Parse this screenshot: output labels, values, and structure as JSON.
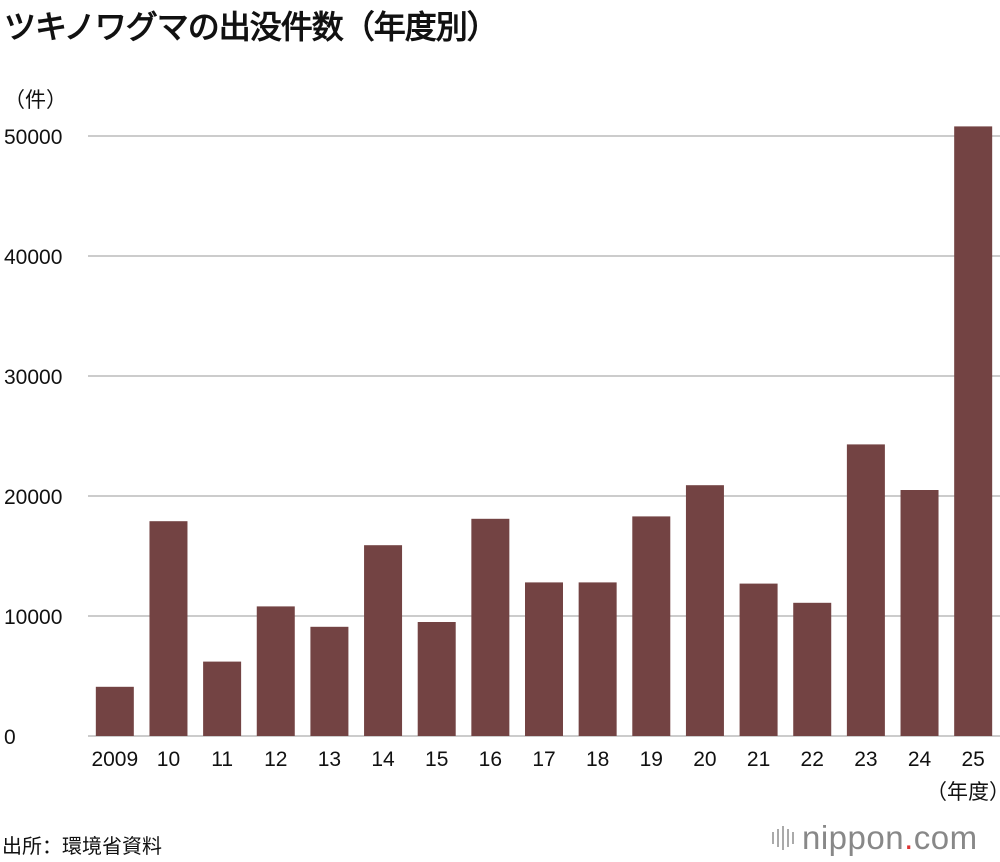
{
  "header": {
    "title": "ツキノワグマの出没件数（年度別）",
    "y_unit": "（件）",
    "x_unit": "（年度）"
  },
  "footer": {
    "source": "出所：環境省資料",
    "logo_name": "nippon",
    "logo_dot": ".",
    "logo_tld": "com"
  },
  "colors": {
    "bar": "#734343",
    "grid": "#cccccc"
  },
  "chart_data": {
    "type": "bar",
    "categories": [
      "2009",
      "10",
      "11",
      "12",
      "13",
      "14",
      "15",
      "16",
      "17",
      "18",
      "19",
      "20",
      "21",
      "22",
      "23",
      "24",
      "25"
    ],
    "values": [
      4100,
      17900,
      6200,
      10800,
      9100,
      15900,
      9500,
      18100,
      12800,
      12800,
      18300,
      20900,
      12700,
      11100,
      24300,
      20500,
      50800
    ],
    "yticks": [
      0,
      10000,
      20000,
      30000,
      40000,
      50000
    ],
    "ylim": [
      0,
      50000
    ],
    "xlabel": "（年度）",
    "ylabel": "（件）",
    "title": "ツキノワグマの出没件数（年度別）",
    "grid": true,
    "legend": "none"
  }
}
